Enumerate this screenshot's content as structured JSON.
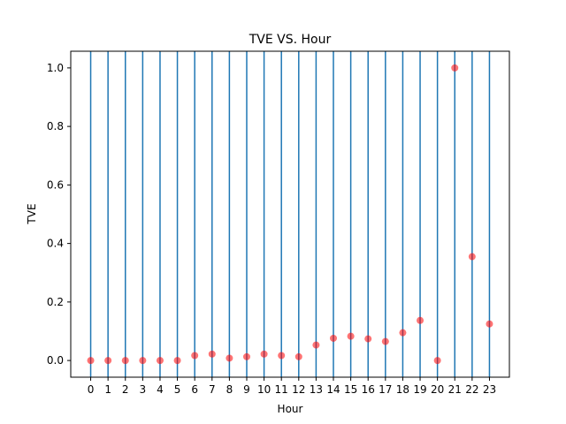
{
  "chart_data": {
    "type": "scatter",
    "title": "TVE VS. Hour",
    "xlabel": "Hour",
    "ylabel": "TVE",
    "x": [
      0,
      1,
      2,
      3,
      4,
      5,
      6,
      7,
      8,
      9,
      10,
      11,
      12,
      13,
      14,
      15,
      16,
      17,
      18,
      19,
      20,
      21,
      22,
      23
    ],
    "y": [
      0.0,
      0.0,
      0.0,
      0.0,
      0.0,
      0.0,
      0.017,
      0.022,
      0.008,
      0.013,
      0.022,
      0.017,
      0.013,
      0.053,
      0.076,
      0.083,
      0.074,
      0.065,
      0.095,
      0.137,
      0.0,
      1.0,
      0.355,
      0.125
    ],
    "x_tick_labels": [
      "0",
      "1",
      "2",
      "3",
      "4",
      "5",
      "6",
      "7",
      "8",
      "9",
      "10",
      "11",
      "12",
      "13",
      "14",
      "15",
      "16",
      "17",
      "18",
      "19",
      "20",
      "21",
      "22",
      "23"
    ],
    "y_ticks": [
      0.0,
      0.2,
      0.4,
      0.6,
      0.8,
      1.0
    ],
    "y_tick_labels": [
      "0.0",
      "0.2",
      "0.4",
      "0.6",
      "0.8",
      "1.0"
    ],
    "xlim": [
      -1.15,
      24.15
    ],
    "ylim": [
      -0.057,
      1.057
    ],
    "vertical_lines_at_x": [
      0,
      1,
      2,
      3,
      4,
      5,
      6,
      7,
      8,
      9,
      10,
      11,
      12,
      13,
      14,
      15,
      16,
      17,
      18,
      19,
      20,
      21,
      22,
      23
    ],
    "colors": {
      "points": "#ff0000",
      "vertical_lines": "#1f77b4"
    },
    "point_alpha": 0.55,
    "grid": false,
    "legend": "none"
  }
}
